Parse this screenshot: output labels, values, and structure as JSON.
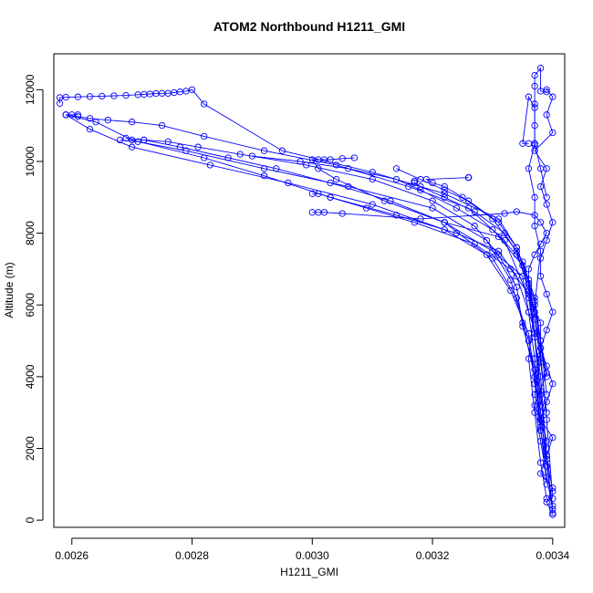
{
  "chart_data": {
    "type": "line",
    "title": "ATOM2 Northbound H1211_GMI",
    "xlabel": "H1211_GMI",
    "ylabel": "Altitude (m)",
    "xlim": [
      0.00257,
      0.00342
    ],
    "ylim": [
      -200,
      13000
    ],
    "x_ticks": [
      0.0026,
      0.0028,
      0.003,
      0.0032,
      0.0034
    ],
    "x_tick_labels": [
      "0.0026",
      "0.0028",
      "0.0030",
      "0.0032",
      "0.0034"
    ],
    "y_ticks": [
      0,
      2000,
      4000,
      6000,
      8000,
      10000,
      12000
    ],
    "y_tick_labels": [
      "0",
      "2000",
      "4000",
      "6000",
      "8000",
      "10000",
      "12000"
    ],
    "grid": false,
    "series_color": "#0000ff",
    "marker": "open-circle",
    "series": [
      {
        "x": [
          0.0034,
          0.00339,
          0.0034,
          0.00338,
          0.00339,
          0.0034,
          0.00338,
          0.00339,
          0.0034,
          0.00339,
          0.00338,
          0.00339,
          0.0034,
          0.00339,
          0.00338,
          0.00338,
          0.00339,
          0.0034,
          0.00339,
          0.00338,
          0.00339,
          0.00337,
          0.0034,
          0.00339,
          0.0034,
          0.00339
        ],
        "y": [
          150,
          500,
          900,
          1300,
          1800,
          2300,
          2800,
          3300,
          3800,
          4300,
          4800,
          5300,
          5800,
          6300,
          6800,
          7300,
          7800,
          8300,
          8800,
          9300,
          9800,
          10300,
          10800,
          11300,
          11800,
          12000
        ]
      },
      {
        "x": [
          0.0034,
          0.00339,
          0.00338,
          0.00337,
          0.00339,
          0.00338,
          0.00337,
          0.00336,
          0.00336,
          0.00337,
          0.00338,
          0.00339,
          0.00338,
          0.00337,
          0.00334,
          0.00332,
          0.00318,
          0.00305,
          0.00302,
          0.00301,
          0.003
        ],
        "y": [
          300,
          1200,
          2200,
          3200,
          4100,
          5000,
          5800,
          6500,
          7000,
          7400,
          7700,
          8000,
          8300,
          8500,
          8600,
          8550,
          8400,
          8550,
          8580,
          8580,
          8580
        ]
      },
      {
        "x": [
          0.0034,
          0.00339,
          0.00338,
          0.00337,
          0.00338,
          0.00338,
          0.00336,
          0.00333,
          0.00327,
          0.00317,
          0.00309,
          0.00303,
          0.00301,
          0.003
        ],
        "y": [
          400,
          1500,
          2500,
          3500,
          4500,
          5500,
          6300,
          7000,
          7700,
          8300,
          8700,
          9000,
          9100,
          9100
        ]
      },
      {
        "x": [
          0.0034,
          0.00339,
          0.00338,
          0.00337,
          0.00338,
          0.00336,
          0.00335,
          0.0033,
          0.00322,
          0.00312,
          0.00304,
          0.00301,
          0.003,
          0.00301,
          0.00302,
          0.00303,
          0.00305,
          0.00307
        ],
        "y": [
          800,
          1800,
          2800,
          3800,
          4800,
          5800,
          6800,
          7500,
          8300,
          8900,
          9500,
          9800,
          10050,
          10050,
          10050,
          10050,
          10080,
          10100
        ]
      },
      {
        "x": [
          0.00339,
          0.00338,
          0.00337,
          0.00336,
          0.00334,
          0.00331,
          0.00324,
          0.00314,
          0.00303,
          0.00292,
          0.00282,
          0.0027,
          0.00264,
          0.00259,
          0.0026,
          0.00261
        ],
        "y": [
          1500,
          3000,
          4500,
          5800,
          6800,
          7500,
          8000,
          8500,
          9000,
          9600,
          10100,
          10600,
          11100,
          11300,
          11300,
          11300
        ]
      },
      {
        "x": [
          0.00339,
          0.00338,
          0.00336,
          0.00334,
          0.0033,
          0.00322,
          0.0031,
          0.00296,
          0.00283,
          0.0027,
          0.00263,
          0.00259
        ],
        "y": [
          2000,
          3500,
          5000,
          6200,
          7300,
          8100,
          8800,
          9400,
          9900,
          10400,
          10900,
          11300
        ]
      },
      {
        "x": [
          0.00338,
          0.00337,
          0.00335,
          0.00333,
          0.00329,
          0.0032,
          0.00306,
          0.00292,
          0.00279,
          0.00271,
          0.00268
        ],
        "y": [
          2500,
          4000,
          5500,
          6700,
          7800,
          8700,
          9300,
          9800,
          10300,
          10550,
          10600
        ]
      },
      {
        "x": [
          0.00339,
          0.00338,
          0.00337,
          0.00335,
          0.00334,
          0.00331,
          0.00327,
          0.0032,
          0.0031,
          0.00299,
          0.00288,
          0.00281,
          0.00276,
          0.00272
        ],
        "y": [
          1000,
          2600,
          4200,
          5400,
          6500,
          7400,
          8200,
          8900,
          9500,
          9900,
          10200,
          10400,
          10550,
          10600
        ]
      },
      {
        "x": [
          0.00339,
          0.00337,
          0.00336,
          0.00333,
          0.00329,
          0.00322,
          0.00313,
          0.00303,
          0.00294,
          0.00286,
          0.00278,
          0.00272,
          0.00269
        ],
        "y": [
          2200,
          3800,
          5200,
          6400,
          7400,
          8300,
          8900,
          9400,
          9800,
          10100,
          10400,
          10600,
          10650
        ]
      },
      {
        "x": [
          0.00339,
          0.00338,
          0.00337,
          0.00336,
          0.00334,
          0.0033,
          0.00324,
          0.00318,
          0.00314,
          0.00306,
          0.00298,
          0.0029
        ],
        "y": [
          3000,
          4400,
          5600,
          6600,
          7400,
          8100,
          8700,
          9200,
          9500,
          9800,
          10000,
          10150
        ]
      },
      {
        "x": [
          0.00339,
          0.00338,
          0.00337,
          0.00335,
          0.00332,
          0.00327,
          0.00322,
          0.00318,
          0.00317,
          0.00317,
          0.00317
        ],
        "y": [
          3500,
          5000,
          6200,
          7200,
          8000,
          8600,
          9000,
          9300,
          9400,
          9450,
          9450
        ]
      },
      {
        "x": [
          0.00339,
          0.00337,
          0.00336,
          0.00334,
          0.00331,
          0.00326,
          0.00322,
          0.00318,
          0.00314
        ],
        "y": [
          4000,
          5600,
          6700,
          7600,
          8300,
          8900,
          9200,
          9500,
          9800
        ]
      },
      {
        "x": [
          0.00338,
          0.00337,
          0.00336,
          0.00334,
          0.0033,
          0.00325,
          0.00322,
          0.0032,
          0.00319,
          0.00326,
          0.00326,
          0.00326
        ],
        "y": [
          3200,
          5100,
          6400,
          7500,
          8400,
          9000,
          9300,
          9400,
          9500,
          9550,
          9550,
          9550
        ]
      },
      {
        "x": [
          0.0034,
          0.00339,
          0.00338,
          0.00337,
          0.00335,
          0.00331,
          0.00322
        ],
        "y": [
          600,
          2800,
          4600,
          6100,
          7100,
          7900,
          8300
        ]
      },
      {
        "x": [
          0.00339,
          0.00338,
          0.00336,
          0.00332,
          0.00326,
          0.00316,
          0.00304,
          0.00292,
          0.00282,
          0.00275,
          0.0027,
          0.00266,
          0.00263,
          0.00261,
          0.00259
        ],
        "y": [
          1700,
          4000,
          6200,
          7800,
          8700,
          9300,
          9900,
          10300,
          10700,
          11000,
          11100,
          11150,
          11200,
          11250,
          11300
        ]
      },
      {
        "x": [
          0.0034,
          0.00339,
          0.00338,
          0.00337,
          0.00336,
          0.00334,
          0.00331,
          0.00322,
          0.0031,
          0.00295,
          0.00282,
          0.0028,
          0.00279,
          0.00278,
          0.00277,
          0.00276,
          0.00275,
          0.00274,
          0.00273,
          0.00272,
          0.00271,
          0.00269,
          0.00267,
          0.00265,
          0.00263,
          0.00261,
          0.00259,
          0.00258,
          0.00258
        ],
        "y": [
          200,
          1800,
          3600,
          5200,
          6600,
          7600,
          8400,
          9100,
          9700,
          10300,
          11600,
          12000,
          11960,
          11940,
          11920,
          11900,
          11900,
          11890,
          11880,
          11870,
          11860,
          11840,
          11830,
          11820,
          11810,
          11800,
          11790,
          11780,
          11620
        ]
      },
      {
        "x": [
          0.00339,
          0.00338,
          0.00337,
          0.00336,
          0.00337,
          0.00338,
          0.00337,
          0.00337,
          0.00336,
          0.00337,
          0.00337,
          0.00337,
          0.00336,
          0.00335,
          0.00336
        ],
        "y": [
          600,
          1600,
          3000,
          4500,
          6000,
          7500,
          8200,
          9000,
          9800,
          10500,
          10450,
          11500,
          11800,
          10500,
          10500
        ]
      },
      {
        "x": [
          0.00339,
          0.00338,
          0.00337,
          0.00337,
          0.00337,
          0.00337,
          0.00337,
          0.00338,
          0.00338,
          0.00339
        ],
        "y": [
          9000,
          9800,
          10500,
          11000,
          11600,
          12100,
          12400,
          12600,
          11960,
          11940
        ]
      }
    ]
  }
}
